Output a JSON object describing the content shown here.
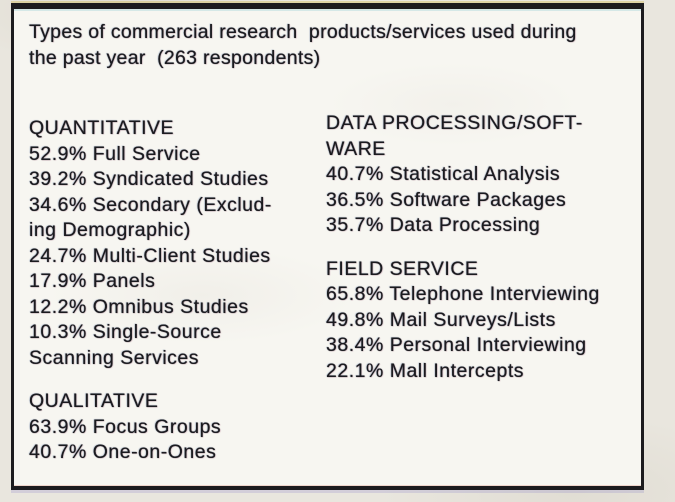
{
  "title": "Types of commercial research  products/services used during\nthe past year  (263 respondents)",
  "respondents_count": "263",
  "colors": {
    "page-bg": "#e9e6de",
    "paper": "#f7f6f1",
    "ink": "#1b1b1f",
    "border": "#1c1b1e"
  },
  "columns": {
    "left": {
      "sections": [
        {
          "header": "QUANTITATIVE",
          "lines": [
            "52.9% Full Service",
            "39.2% Syndicated Studies",
            "34.6% Secondary (Exclud-",
            "ing Demographic)",
            "24.7% Multi-Client Studies",
            "17.9% Panels",
            "12.2% Omnibus Studies",
            "10.3% Single-Source",
            "Scanning Services"
          ]
        },
        {
          "header": "QUALITATIVE",
          "lines": [
            "63.9% Focus Groups",
            "40.7% One-on-Ones"
          ]
        }
      ]
    },
    "right": {
      "sections": [
        {
          "header": "DATA PROCESSING/SOFT-\nWARE",
          "lines": [
            "40.7% Statistical Analysis",
            "36.5% Software Packages",
            "35.7% Data Processing"
          ]
        },
        {
          "header": "FIELD SERVICE",
          "lines": [
            "65.8% Telephone Interviewing",
            "49.8% Mail Surveys/Lists",
            "38.4% Personal Interviewing",
            "22.1% Mall Intercepts"
          ]
        }
      ]
    }
  }
}
